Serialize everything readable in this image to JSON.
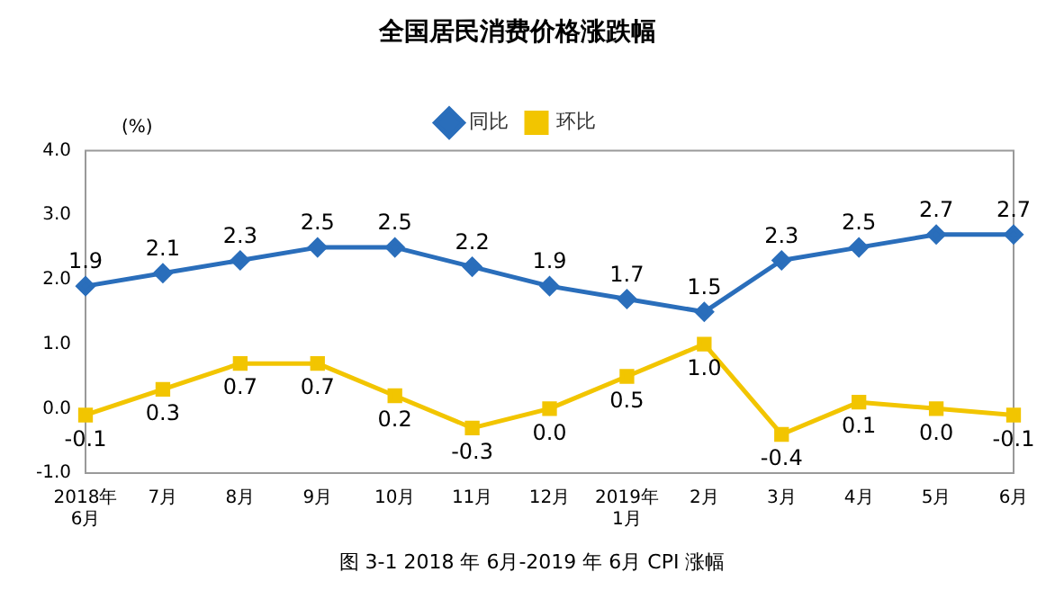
{
  "chart_data": {
    "type": "line",
    "title": "全国居民消费价格涨跌幅",
    "ylabel": "(%)",
    "categories": [
      "2018年6月",
      "7月",
      "8月",
      "9月",
      "10月",
      "11月",
      "12月",
      "2019年1月",
      "2月",
      "3月",
      "4月",
      "5月",
      "6月"
    ],
    "series": [
      {
        "name": "同比",
        "color": "#2a6ebb",
        "marker": "diamond",
        "values": [
          1.9,
          2.1,
          2.3,
          2.5,
          2.5,
          2.2,
          1.9,
          1.7,
          1.5,
          2.3,
          2.5,
          2.7,
          2.7
        ],
        "value_labels": [
          "1.9",
          "2.1",
          "2.3",
          "2.5",
          "2.5",
          "2.2",
          "1.9",
          "1.7",
          "1.5",
          "2.3",
          "2.5",
          "2.7",
          "2.7"
        ]
      },
      {
        "name": "环比",
        "color": "#f2c500",
        "marker": "square",
        "values": [
          -0.1,
          0.3,
          0.7,
          0.7,
          0.2,
          -0.3,
          0.0,
          0.5,
          1.0,
          -0.4,
          0.1,
          0.0,
          -0.1
        ],
        "value_labels": [
          "-0.1",
          "0.3",
          "0.7",
          "0.7",
          "0.2",
          "-0.3",
          "0.0",
          "0.5",
          "1.0",
          "-0.4",
          "0.1",
          "0.0",
          "-0.1"
        ]
      }
    ],
    "ylim": [
      -1,
      4
    ],
    "yticks": [
      {
        "value": -1,
        "label": "-1.0"
      },
      {
        "value": 0,
        "label": "0.0"
      },
      {
        "value": 1,
        "label": "1.0"
      },
      {
        "value": 2,
        "label": "2.0"
      },
      {
        "value": 3,
        "label": "3.0"
      },
      {
        "value": 4,
        "label": "4.0"
      }
    ],
    "grid": false,
    "legend": "top",
    "annotations": [
      "图 3-1 2018 年 6月-2019 年 6月 CPI 涨幅"
    ]
  }
}
